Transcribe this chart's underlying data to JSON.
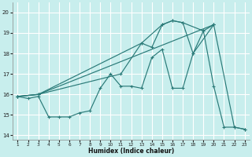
{
  "xlabel": "Humidex (Indice chaleur)",
  "bg_color": "#c8eeed",
  "line_color": "#2a7a78",
  "grid_color": "#b8e4e2",
  "ylim": [
    13.8,
    20.5
  ],
  "xlim": [
    0.5,
    23.5
  ],
  "yticks": [
    14,
    15,
    16,
    17,
    18,
    19,
    20
  ],
  "xticks": [
    1,
    2,
    3,
    4,
    5,
    6,
    7,
    8,
    9,
    10,
    11,
    12,
    13,
    14,
    15,
    16,
    17,
    18,
    19,
    20,
    21,
    22,
    23
  ],
  "line1_x": [
    1,
    2,
    3,
    4,
    5,
    6,
    7,
    8,
    9,
    10,
    11,
    12,
    13,
    14,
    15,
    16,
    17,
    18,
    19,
    20,
    21,
    22,
    23
  ],
  "line1_y": [
    15.9,
    15.8,
    15.9,
    14.9,
    14.9,
    14.9,
    15.1,
    15.2,
    16.3,
    17.0,
    16.4,
    16.4,
    16.3,
    17.8,
    18.2,
    16.3,
    16.3,
    18.0,
    19.1,
    16.4,
    14.4,
    14.4,
    14.3
  ],
  "line2_x": [
    1,
    3,
    13,
    15,
    16,
    17,
    19,
    20,
    22,
    23
  ],
  "line2_y": [
    15.9,
    16.0,
    18.5,
    19.4,
    19.6,
    19.5,
    19.1,
    19.4,
    14.4,
    14.3
  ],
  "line3_x": [
    1,
    3,
    11,
    13,
    14,
    15,
    16,
    17,
    18,
    20
  ],
  "line3_y": [
    15.9,
    16.0,
    17.0,
    18.5,
    18.3,
    19.4,
    19.6,
    19.5,
    18.0,
    19.4
  ],
  "line4_x": [
    1,
    3,
    20
  ],
  "line4_y": [
    15.9,
    16.0,
    19.4
  ]
}
